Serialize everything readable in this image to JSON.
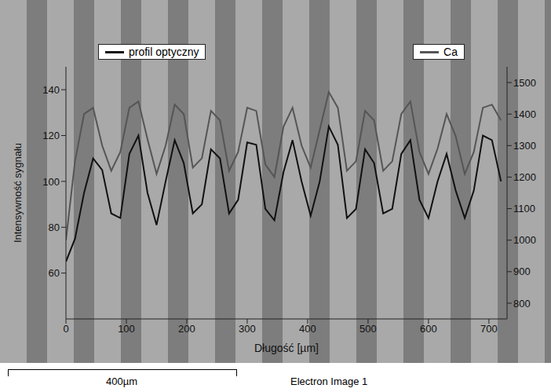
{
  "chart_data": {
    "type": "line",
    "x_label": "Długość [µm]",
    "y_label": "Intensywność sygnału",
    "x": [
      0,
      15,
      30,
      45,
      60,
      75,
      90,
      105,
      120,
      135,
      150,
      165,
      180,
      195,
      210,
      225,
      240,
      255,
      270,
      285,
      300,
      315,
      330,
      345,
      360,
      375,
      390,
      405,
      420,
      435,
      450,
      465,
      480,
      495,
      510,
      525,
      540,
      555,
      570,
      585,
      600,
      615,
      630,
      645,
      660,
      675,
      690,
      705,
      720
    ],
    "series": [
      {
        "name": "profil optyczny",
        "color": "#111111",
        "values": [
          65,
          75,
          95,
          110,
          105,
          86,
          84,
          112,
          120,
          95,
          81,
          100,
          118,
          108,
          86,
          90,
          114,
          110,
          86,
          92,
          117,
          116,
          88,
          83,
          104,
          118,
          100,
          85,
          100,
          124,
          116,
          84,
          88,
          114,
          108,
          86,
          88,
          112,
          118,
          92,
          84,
          100,
          112,
          96,
          84,
          96,
          120,
          118,
          100
        ]
      },
      {
        "name": "Ca",
        "color": "#555555",
        "axis": "y2",
        "values": [
          1000,
          1250,
          1400,
          1420,
          1300,
          1220,
          1280,
          1420,
          1440,
          1320,
          1210,
          1300,
          1430,
          1400,
          1230,
          1260,
          1410,
          1380,
          1220,
          1280,
          1420,
          1410,
          1240,
          1200,
          1360,
          1420,
          1300,
          1230,
          1350,
          1470,
          1420,
          1220,
          1250,
          1410,
          1380,
          1220,
          1250,
          1400,
          1440,
          1280,
          1210,
          1290,
          1400,
          1330,
          1210,
          1280,
          1420,
          1430,
          1380
        ]
      }
    ],
    "xlim": [
      0,
      730
    ],
    "xticks": [
      0,
      100,
      200,
      300,
      400,
      500,
      600,
      700
    ],
    "ylim": [
      40,
      150
    ],
    "yticks": [
      60,
      80,
      100,
      120,
      140
    ],
    "y2lim": [
      750,
      1550
    ],
    "y2ticks": [
      800,
      900,
      1000,
      1100,
      1200,
      1300,
      1400,
      1500
    ],
    "legend": "top",
    "grid": false,
    "annotations": [
      "400µm",
      "Electron Image 1"
    ]
  }
}
